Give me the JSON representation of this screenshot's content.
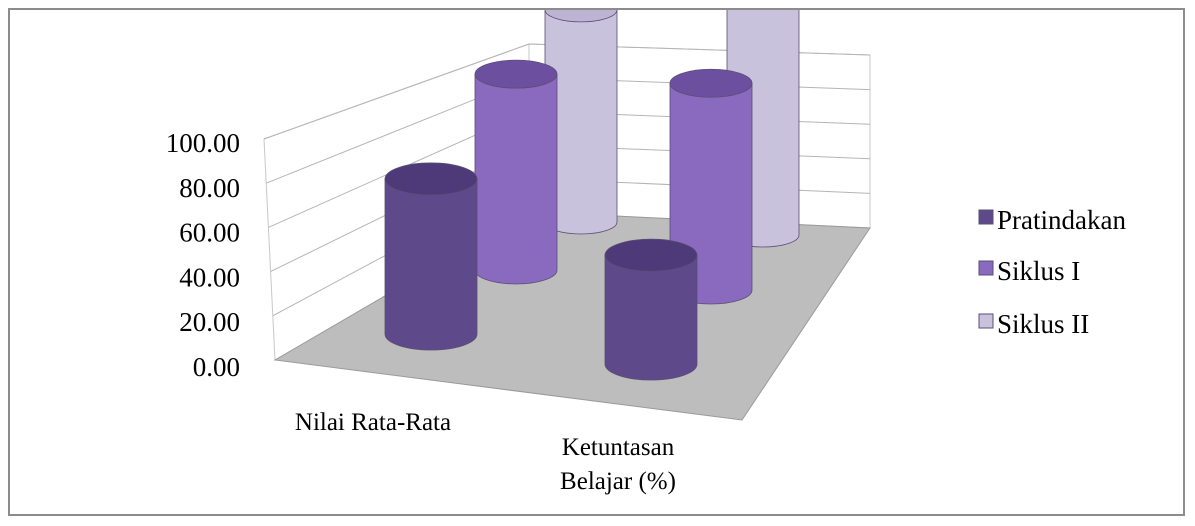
{
  "chart_data": {
    "type": "bar",
    "style": "3d-cylinder",
    "categories": [
      "Nilai Rata-Rata",
      "Ketuntasan Belajar (%)"
    ],
    "category_lines": [
      [
        "Nilai Rata-Rata"
      ],
      [
        "Ketuntasan",
        "Belajar (%)"
      ]
    ],
    "series": [
      {
        "name": "Pratindakan",
        "values": [
          57,
          40
        ],
        "color": "#5e4a8b",
        "top_color": "#4e3a78"
      },
      {
        "name": "Siklus I",
        "values": [
          72,
          76
        ],
        "color": "#8a6abf",
        "top_color": "#6d4f9f"
      },
      {
        "name": "Siklus II",
        "values": [
          78,
          88
        ],
        "color": "#c9c2dc",
        "top_color": "#bdb4d4"
      }
    ],
    "y_ticks": [
      "0.00",
      "20.00",
      "40.00",
      "60.00",
      "80.00",
      "100.00"
    ],
    "ylim": [
      0,
      100
    ],
    "grid": true,
    "legend_position": "right"
  }
}
